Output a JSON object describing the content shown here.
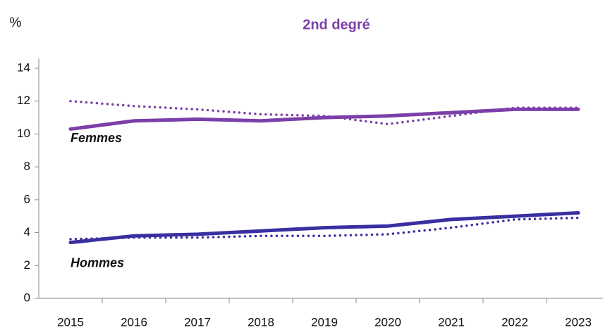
{
  "chart_data": {
    "type": "line",
    "title": "2nd degré",
    "title_color": "#7b3fa9",
    "y_label": "%",
    "categories": [
      "2015",
      "2016",
      "2017",
      "2018",
      "2019",
      "2020",
      "2021",
      "2022",
      "2023"
    ],
    "series": [
      {
        "color": "#7b3fa9",
        "style": "solid",
        "values": [
          10.3,
          10.8,
          10.9,
          10.8,
          11.0,
          11.1,
          11.3,
          11.5,
          11.5
        ]
      },
      {
        "color": "#7b3fa9",
        "style": "dotted",
        "values": [
          12.0,
          11.7,
          11.5,
          11.2,
          11.1,
          10.6,
          11.1,
          11.6,
          11.6
        ]
      },
      {
        "color": "#3a2fa0",
        "style": "solid",
        "values": [
          3.4,
          3.8,
          3.9,
          4.1,
          4.3,
          4.4,
          4.8,
          5.0,
          5.2
        ]
      },
      {
        "color": "#3a2fa0",
        "style": "dotted",
        "values": [
          3.6,
          3.7,
          3.7,
          3.8,
          3.8,
          3.9,
          4.3,
          4.8,
          4.9
        ]
      }
    ],
    "annotations": [
      {
        "text": "Femmes",
        "x": "2015",
        "y": 9.7
      },
      {
        "text": "Hommes",
        "x": "2015",
        "y": 2.1
      }
    ],
    "ylim": [
      0,
      14.6
    ],
    "yticks": [
      0,
      2,
      4,
      6,
      8,
      10,
      12,
      14
    ],
    "grid": false
  }
}
